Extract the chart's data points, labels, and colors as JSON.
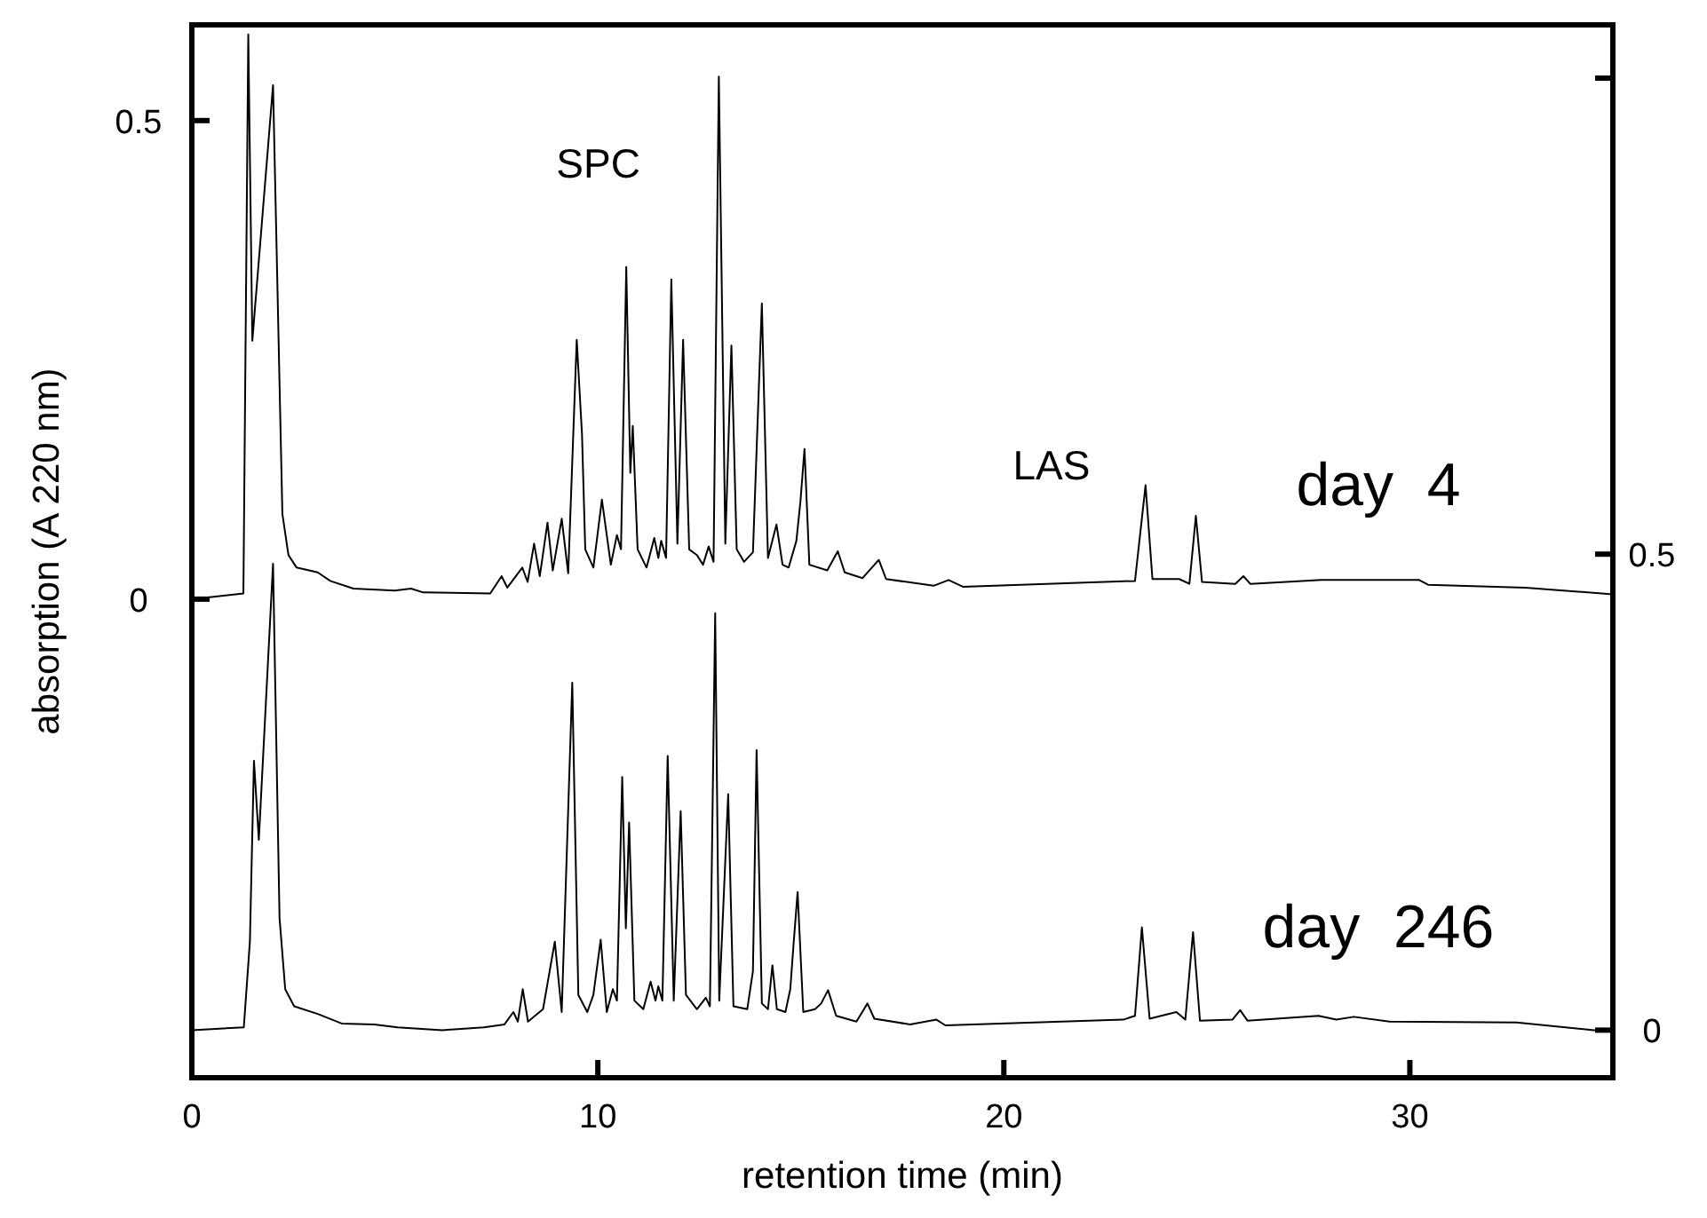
{
  "chart_data": {
    "type": "line",
    "xlabel": "retention time (min)",
    "ylabel": "absorption (A 220 nm)",
    "xlim": [
      0,
      35
    ],
    "xticks": [
      0,
      10,
      20,
      30
    ],
    "ylim": [
      -0.5,
      0.6
    ],
    "yticks": [
      0,
      0.5
    ],
    "y2lim": [
      -0.05,
      1.056
    ],
    "y2ticks": [
      0,
      0.5,
      {
        "value": 1,
        "label": null
      }
    ],
    "grid": false,
    "marker": "none",
    "line_style": "solid",
    "annotations": [
      "SPC",
      "LAS"
    ],
    "series": [
      {
        "name": "day  4",
        "color": "#000000",
        "x": [
          0,
          1.27,
          1.39,
          1.49,
          2.0,
          2.23,
          2.38,
          2.58,
          3.1,
          3.41,
          3.98,
          5.0,
          5.4,
          5.7,
          7.35,
          7.63,
          7.77,
          8.14,
          8.27,
          8.43,
          8.57,
          8.76,
          8.89,
          9.11,
          9.27,
          9.48,
          9.61,
          9.69,
          9.89,
          10.1,
          10.32,
          10.47,
          10.57,
          10.7,
          10.8,
          10.86,
          10.98,
          11.2,
          11.39,
          11.49,
          11.56,
          11.68,
          11.81,
          11.96,
          12.1,
          12.25,
          12.44,
          12.59,
          12.73,
          12.85,
          12.98,
          13.14,
          13.29,
          13.42,
          13.6,
          13.82,
          14.04,
          14.19,
          14.4,
          14.55,
          14.7,
          14.89,
          14.99,
          15.09,
          15.21,
          15.65,
          15.91,
          16.08,
          16.52,
          16.92,
          17.1,
          18.27,
          18.64,
          18.99,
          23.23,
          23.49,
          23.66,
          24.32,
          24.57,
          24.73,
          24.88,
          25.7,
          25.9,
          26.07,
          27.82,
          30.23,
          30.45,
          32.85,
          34.73,
          35
        ],
        "values": [
          0,
          0.006,
          0.59,
          0.27,
          0.537,
          0.089,
          0.046,
          0.033,
          0.028,
          0.019,
          0.011,
          0.009,
          0.011,
          0.007,
          0.006,
          0.024,
          0.012,
          0.033,
          0.018,
          0.058,
          0.024,
          0.08,
          0.03,
          0.084,
          0.027,
          0.271,
          0.172,
          0.052,
          0.033,
          0.104,
          0.036,
          0.067,
          0.052,
          0.347,
          0.132,
          0.181,
          0.052,
          0.033,
          0.064,
          0.043,
          0.061,
          0.043,
          0.334,
          0.058,
          0.271,
          0.052,
          0.046,
          0.036,
          0.055,
          0.039,
          0.546,
          0.058,
          0.265,
          0.052,
          0.039,
          0.049,
          0.309,
          0.043,
          0.078,
          0.036,
          0.033,
          0.061,
          0.102,
          0.157,
          0.036,
          0.03,
          0.05,
          0.028,
          0.022,
          0.041,
          0.021,
          0.014,
          0.02,
          0.013,
          0.019,
          0.119,
          0.021,
          0.021,
          0.016,
          0.087,
          0.018,
          0.016,
          0.024,
          0.016,
          0.02,
          0.02,
          0.015,
          0.012,
          0.006,
          0.005
        ]
      },
      {
        "name": "day  246",
        "color": "#000000",
        "axis": "y2",
        "x": [
          0,
          1.28,
          1.43,
          1.53,
          1.65,
          2.0,
          2.16,
          2.3,
          2.52,
          3.1,
          3.69,
          4.49,
          5.07,
          6.17,
          7.19,
          7.7,
          7.92,
          8.03,
          8.15,
          8.28,
          8.65,
          8.94,
          9.11,
          9.37,
          9.52,
          9.74,
          9.89,
          10.07,
          10.22,
          10.37,
          10.47,
          10.6,
          10.69,
          10.77,
          10.9,
          11.12,
          11.3,
          11.42,
          11.49,
          11.59,
          11.72,
          11.87,
          12.04,
          12.17,
          12.44,
          12.66,
          12.76,
          12.89,
          12.99,
          13.21,
          13.34,
          13.68,
          13.82,
          13.91,
          14.04,
          14.19,
          14.3,
          14.41,
          14.62,
          14.74,
          14.82,
          14.92,
          15.06,
          15.35,
          15.5,
          15.67,
          15.87,
          16.37,
          16.64,
          16.81,
          17.69,
          18.34,
          18.56,
          22.94,
          23.23,
          23.4,
          23.59,
          24.25,
          24.47,
          24.66,
          24.83,
          25.63,
          25.82,
          26.0,
          27.75,
          28.19,
          28.62,
          29.5,
          32.63,
          34.53,
          35
        ],
        "values": [
          0,
          0.003,
          0.093,
          0.283,
          0.2,
          0.49,
          0.118,
          0.043,
          0.025,
          0.017,
          0.007,
          0.006,
          0.003,
          0,
          0.003,
          0.006,
          0.019,
          0.009,
          0.043,
          0.009,
          0.022,
          0.093,
          0.019,
          0.365,
          0.037,
          0.019,
          0.037,
          0.095,
          0.019,
          0.043,
          0.031,
          0.266,
          0.107,
          0.218,
          0.031,
          0.022,
          0.051,
          0.031,
          0.046,
          0.031,
          0.288,
          0.031,
          0.23,
          0.037,
          0.022,
          0.034,
          0.025,
          0.438,
          0.031,
          0.248,
          0.025,
          0.022,
          0.062,
          0.294,
          0.028,
          0.022,
          0.068,
          0.022,
          0.019,
          0.043,
          0.09,
          0.145,
          0.019,
          0.022,
          0.028,
          0.042,
          0.015,
          0.009,
          0.028,
          0.012,
          0.006,
          0.011,
          0.005,
          0.011,
          0.015,
          0.108,
          0.012,
          0.019,
          0.011,
          0.103,
          0.01,
          0.011,
          0.021,
          0.01,
          0.015,
          0.011,
          0.014,
          0.009,
          0.008,
          0,
          0
        ]
      }
    ]
  }
}
